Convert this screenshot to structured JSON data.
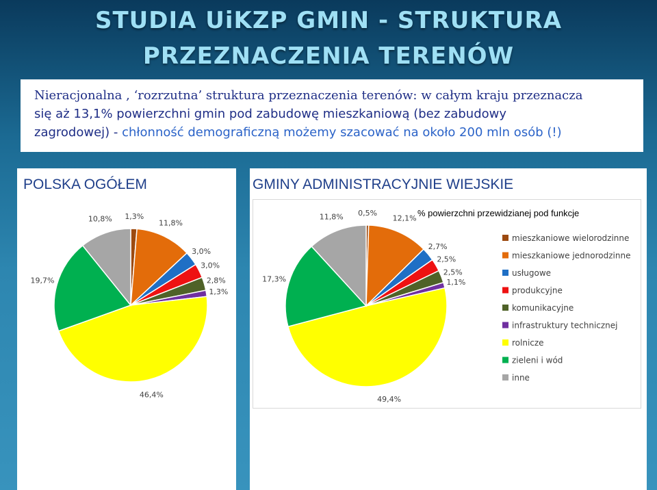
{
  "slide": {
    "title_line1": "STUDIA UiKZP GMIN - STRUKTURA",
    "title_line2": "PRZEZNACZENIA TERENÓW",
    "text_line1": "Nieracjonalna , ‘rozrzutna’ struktura przeznaczenia terenów: w całym kraju przeznacza",
    "text_line2": "się aż 13,1% powierzchni gmin pod zabudowę mieszkaniową (bez zabudowy",
    "text_line3_a": "zagrodowej) - ",
    "text_line3_b": "chłonność demograficzną możemy szacować na około 200 mln osób (!)",
    "left_heading": "POLSKA OGÓŁEM",
    "right_heading": "GMINY ADMINISTRACYJNIE WIEJSKIE",
    "highlight_color": "#2b63c8",
    "text_color": "#1f2e86"
  },
  "chart_data": [
    {
      "type": "pie",
      "title": "",
      "categories": [
        "mieszkaniowe wielorodzinne",
        "mieszkaniowe jednorodzinne",
        "usługowe",
        "produkcyjne",
        "komunikacyjne",
        "infrastruktury technicznej",
        "rolnicze",
        "zieleni i wód",
        "inne"
      ],
      "values": [
        1.3,
        11.8,
        3.0,
        3.0,
        2.8,
        1.3,
        46.4,
        19.7,
        10.8
      ],
      "labels": [
        "1,3%",
        "11,8%",
        "3,0%",
        "3,0%",
        "2,8%",
        "1,3%",
        "46,4%",
        "19,7%",
        "10,8%"
      ],
      "colors": [
        "#9c4a10",
        "#e36c0a",
        "#1f6fc5",
        "#ee1111",
        "#4f6228",
        "#7030a0",
        "#ffff00",
        "#00b050",
        "#a6a6a6"
      ]
    },
    {
      "type": "pie",
      "title": "",
      "legend_title": "% powierzchni przewidzianej pod funkcje",
      "legend_position": "right",
      "categories": [
        "mieszkaniowe wielorodzinne",
        "mieszkaniowe jednorodzinne",
        "usługowe",
        "produkcyjne",
        "komunikacyjne",
        "infrastruktury technicznej",
        "rolnicze",
        "zieleni i wód",
        "inne"
      ],
      "values": [
        0.5,
        12.1,
        2.7,
        2.5,
        2.5,
        1.1,
        49.4,
        17.3,
        11.8
      ],
      "labels": [
        "0,5%",
        "12,1%",
        "2,7%",
        "2,5%",
        "2,5%",
        "1,1%",
        "49,4%",
        "17,3%",
        "11,8%"
      ],
      "colors": [
        "#9c4a10",
        "#e36c0a",
        "#1f6fc5",
        "#ee1111",
        "#4f6228",
        "#7030a0",
        "#ffff00",
        "#00b050",
        "#a6a6a6"
      ]
    }
  ]
}
